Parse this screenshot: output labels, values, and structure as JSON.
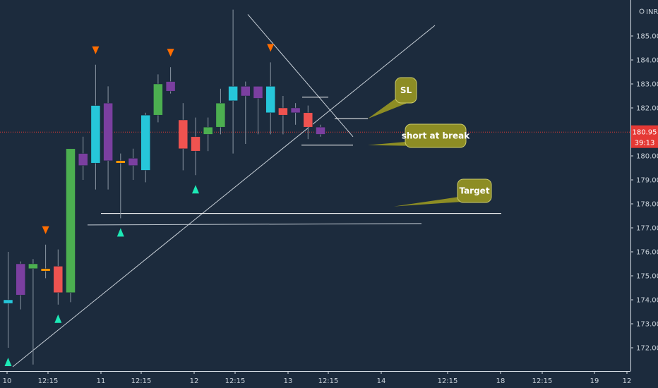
{
  "chart_data": {
    "type": "candlestick",
    "currency_label": "INR",
    "price_axis": {
      "ylim": [
        171.3,
        186.3
      ],
      "ticks": [
        "172.00",
        "173.00",
        "174.00",
        "175.00",
        "176.00",
        "177.00",
        "178.00",
        "179.00",
        "180.00",
        "181.00",
        "182.00",
        "183.00",
        "184.00",
        "185.00"
      ]
    },
    "time_axis": {
      "labels": [
        "10",
        "12:15",
        "11",
        "12:15",
        "12",
        "12:15",
        "13",
        "12:15",
        "14",
        "12:15",
        "18",
        "12:15",
        "19",
        "12"
      ]
    },
    "last_price": {
      "value": "180.95",
      "countdown": "39:13",
      "price": 180.95
    },
    "candles": [
      {
        "o": 173.85,
        "h": 176.0,
        "l": 172.0,
        "c": 174.0,
        "color": "#26c6da"
      },
      {
        "o": 174.2,
        "h": 175.6,
        "l": 173.6,
        "c": 175.5,
        "color": "#7b3fa0"
      },
      {
        "o": 175.3,
        "h": 175.7,
        "l": 171.3,
        "c": 175.5,
        "color": "#4caf50"
      },
      {
        "o": 175.3,
        "h": 176.3,
        "l": 174.9,
        "c": 175.2,
        "color": "#ff9800"
      },
      {
        "o": 175.4,
        "h": 176.1,
        "l": 173.8,
        "c": 174.3,
        "color": "#ef5350"
      },
      {
        "o": 174.3,
        "h": 180.3,
        "l": 173.9,
        "c": 180.3,
        "color": "#4caf50"
      },
      {
        "o": 179.6,
        "h": 180.8,
        "l": 179.0,
        "c": 180.1,
        "color": "#7b3fa0"
      },
      {
        "o": 179.7,
        "h": 183.8,
        "l": 178.6,
        "c": 182.1,
        "color": "#26c6da"
      },
      {
        "o": 182.2,
        "h": 182.9,
        "l": 178.6,
        "c": 179.8,
        "color": "#7b3fa0"
      },
      {
        "o": 179.8,
        "h": 180.1,
        "l": 177.4,
        "c": 179.7,
        "color": "#ff9800"
      },
      {
        "o": 179.9,
        "h": 180.3,
        "l": 179.0,
        "c": 179.6,
        "color": "#7b3fa0"
      },
      {
        "o": 179.4,
        "h": 181.8,
        "l": 178.9,
        "c": 181.7,
        "color": "#26c6da"
      },
      {
        "o": 181.7,
        "h": 183.4,
        "l": 181.4,
        "c": 183.0,
        "color": "#4caf50"
      },
      {
        "o": 182.7,
        "h": 183.7,
        "l": 182.6,
        "c": 183.1,
        "color": "#7b3fa0"
      },
      {
        "o": 181.5,
        "h": 182.2,
        "l": 179.4,
        "c": 180.3,
        "color": "#ef5350"
      },
      {
        "o": 180.8,
        "h": 181.6,
        "l": 179.2,
        "c": 180.2,
        "color": "#ef5350"
      },
      {
        "o": 180.9,
        "h": 181.6,
        "l": 180.2,
        "c": 181.2,
        "color": "#4caf50"
      },
      {
        "o": 181.2,
        "h": 182.8,
        "l": 180.9,
        "c": 182.2,
        "color": "#4caf50"
      },
      {
        "o": 182.3,
        "h": 186.1,
        "l": 180.1,
        "c": 182.9,
        "color": "#26c6da"
      },
      {
        "o": 182.5,
        "h": 183.1,
        "l": 180.5,
        "c": 182.9,
        "color": "#7b3fa0"
      },
      {
        "o": 182.4,
        "h": 182.9,
        "l": 180.9,
        "c": 182.9,
        "color": "#7b3fa0"
      },
      {
        "o": 182.9,
        "h": 183.9,
        "l": 180.9,
        "c": 181.8,
        "color": "#26c6da"
      },
      {
        "o": 181.7,
        "h": 182.5,
        "l": 180.9,
        "c": 182.0,
        "color": "#ef5350"
      },
      {
        "o": 181.8,
        "h": 182.2,
        "l": 181.3,
        "c": 182.0,
        "color": "#7b3fa0"
      },
      {
        "o": 181.8,
        "h": 182.1,
        "l": 180.7,
        "c": 181.2,
        "color": "#ef5350"
      },
      {
        "o": 181.2,
        "h": 181.3,
        "l": 180.8,
        "c": 180.9,
        "color": "#7b3fa0"
      }
    ],
    "up_markers": [
      0,
      4,
      9,
      15
    ],
    "down_markers": [
      3,
      7,
      13,
      18,
      21
    ],
    "levels": {
      "sl": 181.55,
      "sl_short": 182.45,
      "entry": 180.45,
      "target_upper": 177.6,
      "target_lower": 177.15
    },
    "annotations": [
      {
        "text": "SL"
      },
      {
        "text": "short at break"
      },
      {
        "text": "Target"
      }
    ],
    "grid": false,
    "colors": {
      "background": "#1c2b3d",
      "last_price_line": "#e53935",
      "callout_fill": "#8d8d24",
      "up_marker": "#1de9b6",
      "down_marker": "#ff6d00"
    }
  }
}
